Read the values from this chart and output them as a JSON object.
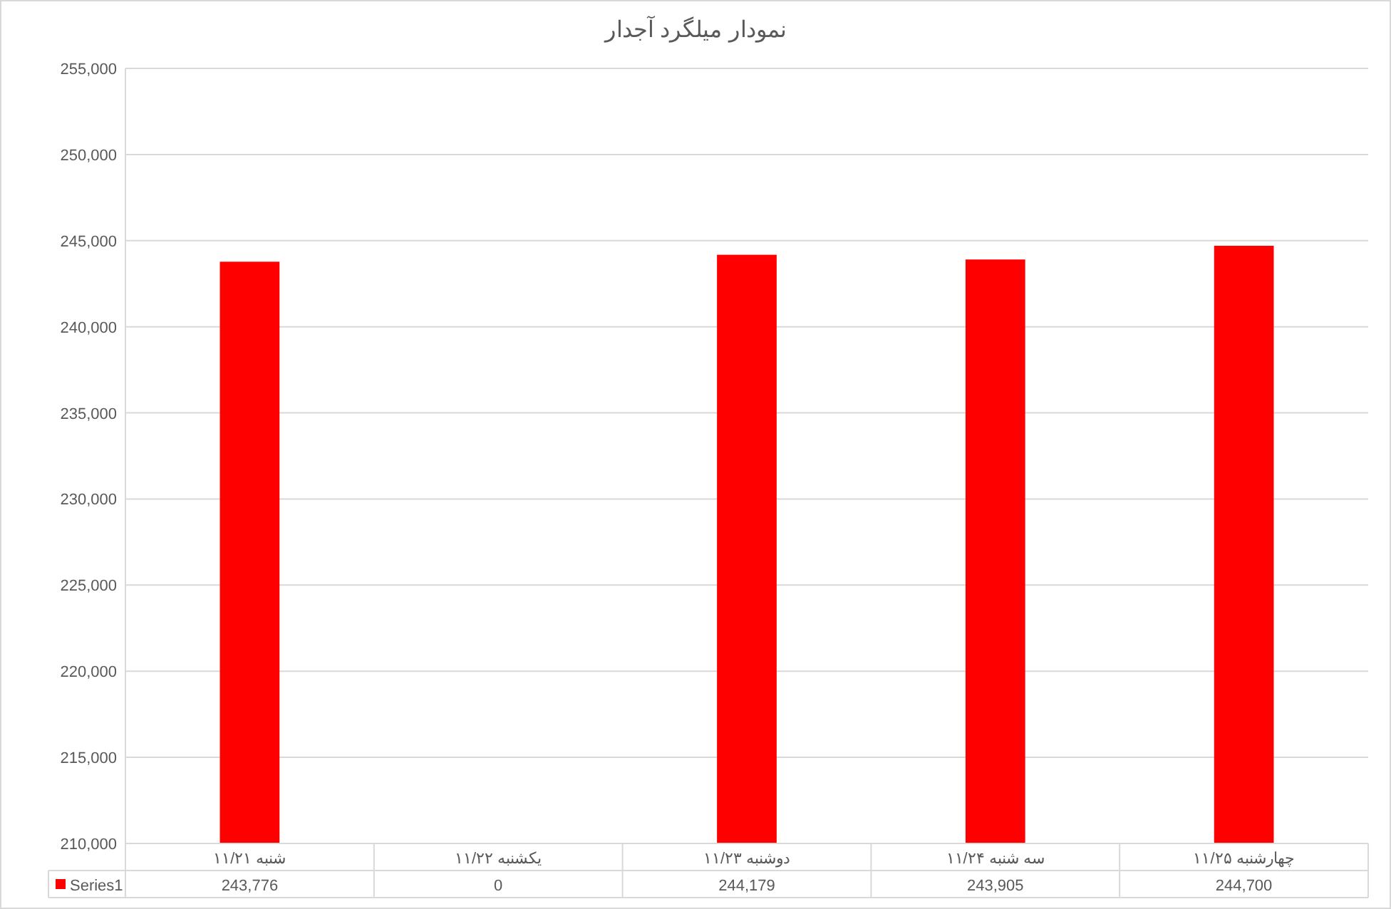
{
  "chart_data": {
    "type": "bar",
    "title": "نمودار میلگرد آجدار",
    "categories": [
      "شنبه ۱۱/۲۱",
      "یکشنبه ۱۱/۲۲",
      "دوشنبه ۱۱/۲۳",
      "سه شنبه ۱۱/۲۴",
      "چهارشنبه ۱۱/۲۵"
    ],
    "series": [
      {
        "name": "Series1",
        "color": "#ff0000",
        "values": [
          243776,
          null,
          244179,
          243905,
          244700
        ],
        "value_labels": [
          "243,776",
          "0",
          "244,179",
          "243,905",
          "244,700"
        ]
      }
    ],
    "ylim": [
      210000,
      255000
    ],
    "yticks": [
      {
        "value": 210000,
        "label": "210,000"
      },
      {
        "value": 215000,
        "label": "215,000"
      },
      {
        "value": 220000,
        "label": "220,000"
      },
      {
        "value": 225000,
        "label": "225,000"
      },
      {
        "value": 230000,
        "label": "230,000"
      },
      {
        "value": 235000,
        "label": "235,000"
      },
      {
        "value": 240000,
        "label": "240,000"
      },
      {
        "value": 245000,
        "label": "245,000"
      },
      {
        "value": 250000,
        "label": "250,000"
      },
      {
        "value": 255000,
        "label": "255,000"
      }
    ],
    "grid": "y",
    "legend": "bottom"
  }
}
